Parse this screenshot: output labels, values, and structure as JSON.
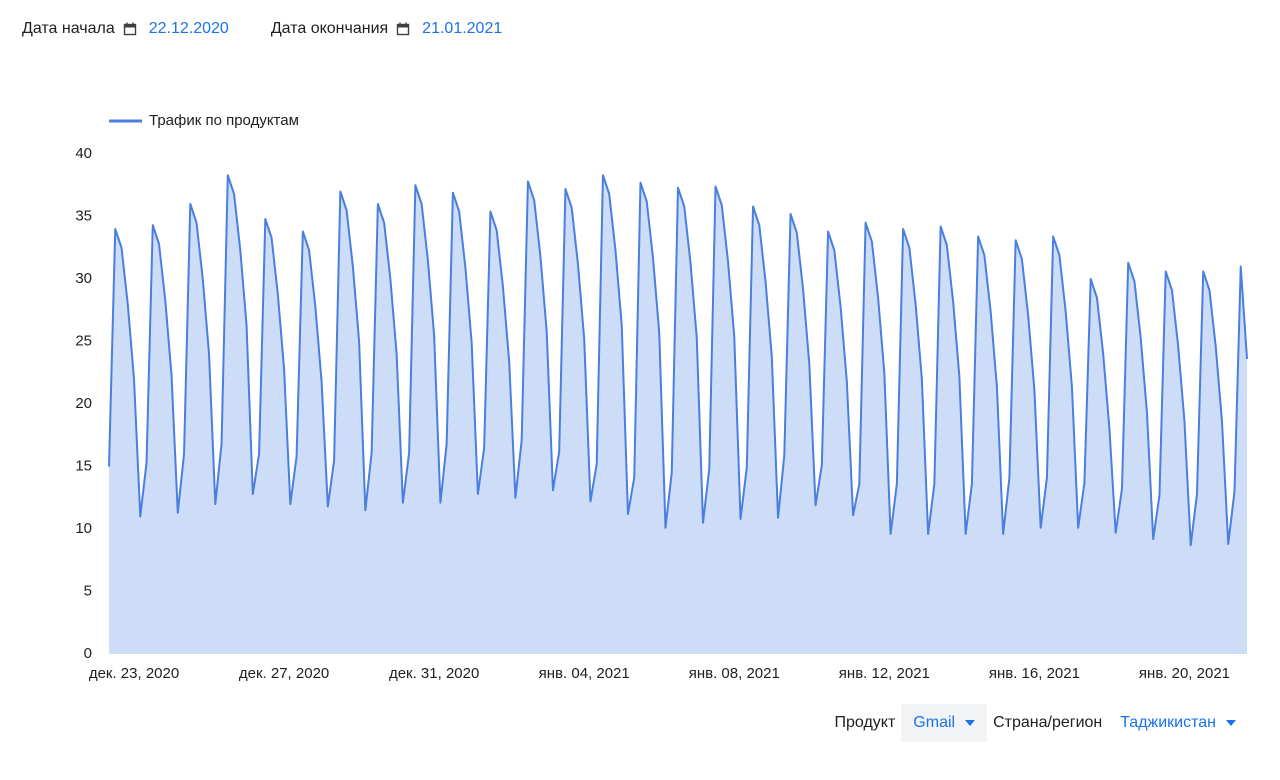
{
  "filters": {
    "start_label": "Дата начала",
    "start_date": "22.12.2020",
    "end_label": "Дата окончания",
    "end_date": "21.01.2021"
  },
  "chart_data": {
    "type": "area",
    "categories": [
      null,
      null,
      null,
      null,
      "дек. 23, 2020",
      null,
      null,
      null,
      null,
      null,
      null,
      null,
      null,
      null,
      null,
      null,
      null,
      null,
      null,
      null,
      null,
      null,
      null,
      null,
      null,
      null,
      null,
      null,
      "дек. 27, 2020",
      null,
      null,
      null,
      null,
      null,
      null,
      null,
      null,
      null,
      null,
      null,
      null,
      null,
      null,
      null,
      null,
      null,
      null,
      null,
      null,
      null,
      null,
      null,
      "дек. 31, 2020",
      null,
      null,
      null,
      null,
      null,
      null,
      null,
      null,
      null,
      null,
      null,
      null,
      null,
      null,
      null,
      null,
      null,
      null,
      null,
      null,
      null,
      null,
      null,
      "янв. 04, 2021",
      null,
      null,
      null,
      null,
      null,
      null,
      null,
      null,
      null,
      null,
      null,
      null,
      null,
      null,
      null,
      null,
      null,
      null,
      null,
      null,
      null,
      null,
      null,
      "янв. 08, 2021",
      null,
      null,
      null,
      null,
      null,
      null,
      null,
      null,
      null,
      null,
      null,
      null,
      null,
      null,
      null,
      null,
      null,
      null,
      null,
      null,
      null,
      null,
      null,
      "янв. 12, 2021",
      null,
      null,
      null,
      null,
      null,
      null,
      null,
      null,
      null,
      null,
      null,
      null,
      null,
      null,
      null,
      null,
      null,
      null,
      null,
      null,
      null,
      null,
      null,
      "янв. 16, 2021",
      null,
      null,
      null,
      null,
      null,
      null,
      null,
      null,
      null,
      null,
      null,
      null,
      null,
      null,
      null,
      null,
      null,
      null,
      null,
      null,
      null,
      null,
      null,
      "янв. 20, 2021",
      null,
      null,
      null,
      null,
      null,
      null,
      null,
      null,
      null,
      null
    ],
    "series": [
      {
        "name": "Трафик по продуктам",
        "color": "#4a7fe0",
        "fill": "#cddcf7",
        "values": [
          15,
          34,
          32.5,
          28,
          22,
          11,
          15.3,
          34.3,
          32.8,
          28.3,
          22.3,
          11.3,
          16,
          36,
          34.5,
          30,
          24,
          12,
          16.8,
          38.3,
          36.8,
          32.3,
          26.3,
          12.8,
          16,
          34.8,
          33.3,
          28.8,
          22.8,
          12,
          15.8,
          33.8,
          32.3,
          27.8,
          21.8,
          11.8,
          15.5,
          37,
          35.5,
          31,
          25,
          11.5,
          16.1,
          36,
          34.5,
          30,
          24,
          12.1,
          16.1,
          37.5,
          36,
          31.5,
          25.5,
          12.1,
          16.8,
          36.9,
          35.4,
          30.9,
          24.9,
          12.8,
          16.5,
          35.4,
          33.9,
          29.4,
          23.4,
          12.5,
          17.1,
          37.8,
          36.3,
          31.8,
          25.8,
          13.1,
          16.2,
          37.2,
          35.7,
          31.2,
          25.2,
          12.2,
          15.2,
          38.3,
          36.8,
          32.3,
          26.3,
          11.2,
          14.1,
          37.7,
          36.2,
          31.7,
          25.7,
          10.1,
          14.5,
          37.3,
          35.8,
          31.3,
          25.3,
          10.5,
          14.8,
          37.4,
          35.9,
          31.4,
          25.4,
          10.8,
          14.9,
          35.8,
          34.3,
          29.8,
          23.8,
          10.9,
          15.9,
          35.2,
          33.7,
          29.2,
          23.2,
          11.9,
          15.1,
          33.8,
          32.3,
          27.8,
          21.8,
          11.1,
          13.6,
          34.5,
          33,
          28.5,
          22.5,
          9.6,
          13.6,
          34,
          32.5,
          28,
          22,
          9.6,
          13.6,
          34.2,
          32.7,
          28.2,
          22.2,
          9.6,
          13.6,
          33.4,
          31.9,
          27.4,
          21.4,
          9.6,
          14.1,
          33.1,
          31.6,
          27.1,
          21.1,
          10.1,
          14.1,
          33.4,
          31.9,
          27.4,
          21.4,
          10.1,
          13.7,
          30,
          28.5,
          24,
          18,
          9.7,
          13.2,
          31.3,
          29.8,
          25.3,
          19.3,
          9.2,
          12.7,
          30.6,
          29.1,
          24.6,
          18.6,
          8.7,
          12.8,
          30.6,
          29.1,
          24.6,
          18.6,
          8.8,
          13,
          31,
          23.6
        ]
      }
    ],
    "ylim": [
      0,
      40
    ],
    "yticks": [
      0,
      5,
      10,
      15,
      20,
      25,
      30,
      35,
      40
    ],
    "grid": false
  },
  "controls": {
    "product_label": "Продукт",
    "product": "Gmail",
    "region_label": "Страна/регион",
    "region": "Таджикистан"
  }
}
